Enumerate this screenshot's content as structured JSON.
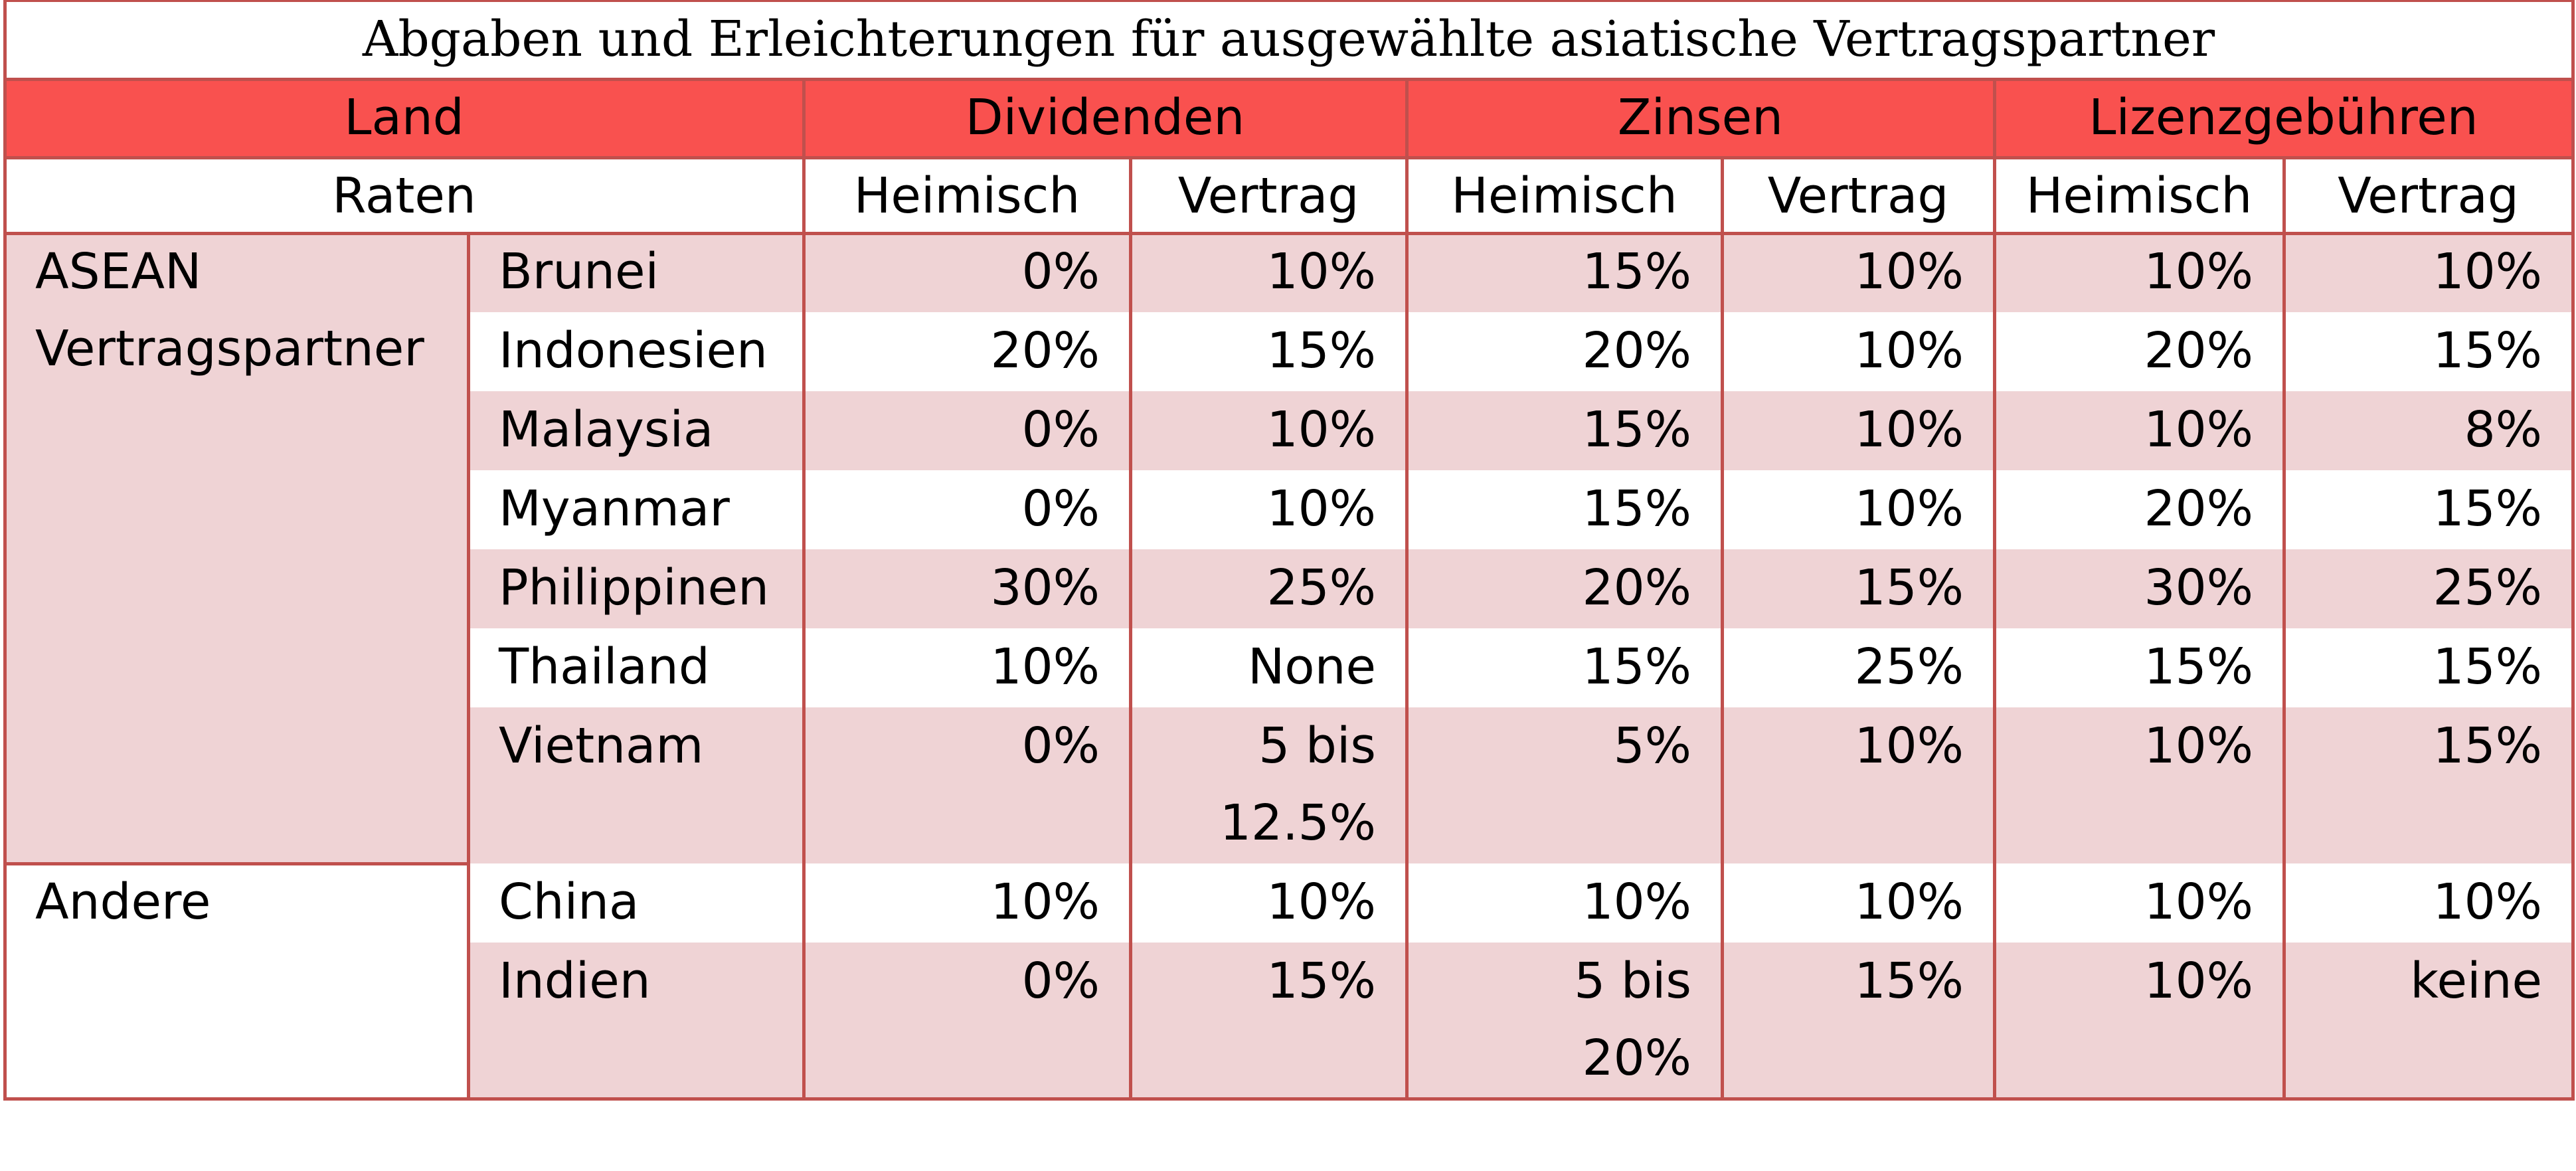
{
  "title": "Abgaben und Erleichterungen für ausgewählte asiatische Vertragspartner",
  "header": {
    "groups": [
      "Land",
      "Dividenden",
      "Zinsen",
      "Lizenzgebühren"
    ],
    "rates_label": "Raten",
    "columns": [
      "Heimisch",
      "Vertrag",
      "Heimisch",
      "Vertrag",
      "Heimisch",
      "Vertrag"
    ]
  },
  "groups": [
    {
      "name": "ASEAN Vertragspartner",
      "rows": [
        {
          "country": "Brunei",
          "values": [
            "0%",
            "10%",
            "15%",
            "10%",
            "10%",
            "10%"
          ]
        },
        {
          "country": "Indonesien",
          "values": [
            "20%",
            "15%",
            "20%",
            "10%",
            "20%",
            "15%"
          ]
        },
        {
          "country": "Malaysia",
          "values": [
            "0%",
            "10%",
            "15%",
            "10%",
            "10%",
            "8%"
          ]
        },
        {
          "country": "Myanmar",
          "values": [
            "0%",
            "10%",
            "15%",
            "10%",
            "20%",
            "15%"
          ]
        },
        {
          "country": "Philippinen",
          "values": [
            "30%",
            "25%",
            "20%",
            "15%",
            "30%",
            "25%"
          ]
        },
        {
          "country": "Thailand",
          "values": [
            "10%",
            "None",
            "15%",
            "25%",
            "15%",
            "15%"
          ]
        },
        {
          "country": "Vietnam",
          "values": [
            "0%",
            "5 bis 12.5%",
            "5%",
            "10%",
            "10%",
            "15%"
          ]
        }
      ]
    },
    {
      "name": "Andere",
      "rows": [
        {
          "country": "China",
          "values": [
            "10%",
            "10%",
            "10%",
            "10%",
            "10%",
            "10%"
          ]
        },
        {
          "country": "Indien",
          "values": [
            "0%",
            "15%",
            "5 bis 20%",
            "15%",
            "10%",
            "keine"
          ]
        }
      ]
    }
  ]
}
